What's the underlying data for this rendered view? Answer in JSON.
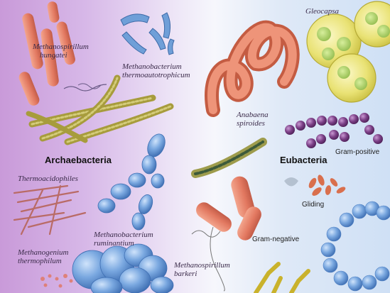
{
  "headings": {
    "archaebacteria": "Archaebacteria",
    "eubacteria": "Eubacteria"
  },
  "labels": {
    "methanospirillum_hungatei": [
      "Methanospirillum",
      "hungatei"
    ],
    "methanobacterium_thermoautotrophicum": [
      "Methanobacterium",
      "thermoautotrophicum"
    ],
    "thermoacidophiles": "Thermoacidophiles",
    "methanogenium_thermophilum": [
      "Methanogenium",
      "thermophilum"
    ],
    "methanobacterium_ruminantium": [
      "Methanobacterium",
      "ruminantium"
    ],
    "methanospirillum_barkeri": [
      "Methanospirillum",
      "barkeri"
    ],
    "gleocapsa": "Gleocapsa",
    "anabaena_spiroides": [
      "Anabaena",
      "spiroides"
    ],
    "gram_positive": "Gram-positive",
    "gliding": "Gliding",
    "gram_negative": "Gram-negative"
  },
  "colors": {
    "archaea_background": "#c99ad9",
    "eubacteria_background": "#cfe0f5",
    "rod_salmon": "#e8836a",
    "blue_cells": "#6f9fd8",
    "olive_filament": "#b7ad4a",
    "purple_cocci": "#7b3f86",
    "gleocapsa_yellow": "#e8e06a"
  }
}
